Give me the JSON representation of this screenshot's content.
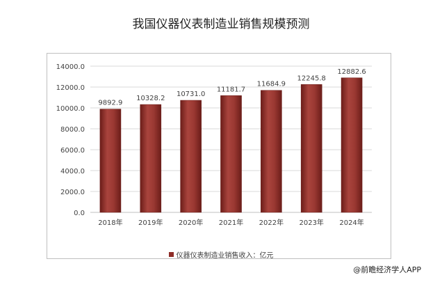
{
  "title": "我国仪器仪表制造业销售规模预测",
  "source": "@前瞻经济学人APP",
  "colors": {
    "bar": "#8e2d28",
    "bar_dark": "#6b1d19",
    "bar_light": "#a9443d",
    "grid": "#d9d9d9",
    "axis": "#bfbfbf"
  },
  "chart_data": {
    "type": "bar",
    "categories": [
      "2018年",
      "2019年",
      "2020年",
      "2021年",
      "2022年",
      "2023年",
      "2024年"
    ],
    "series": [
      {
        "name": "仪器仪表制造业销售收入：亿元",
        "values": [
          9892.9,
          10328.2,
          10731.0,
          11181.7,
          11684.9,
          12245.8,
          12882.6
        ]
      }
    ],
    "data_labels": [
      "9892.9",
      "10328.2",
      "10731.0",
      "11181.7",
      "11684.9",
      "12245.8",
      "12882.6"
    ],
    "yticks": [
      "0.0",
      "2000.0",
      "4000.0",
      "6000.0",
      "8000.0",
      "10000.0",
      "12000.0",
      "14000.0"
    ],
    "ylim": [
      0,
      14000
    ],
    "grid": true,
    "legend": "bottom"
  }
}
